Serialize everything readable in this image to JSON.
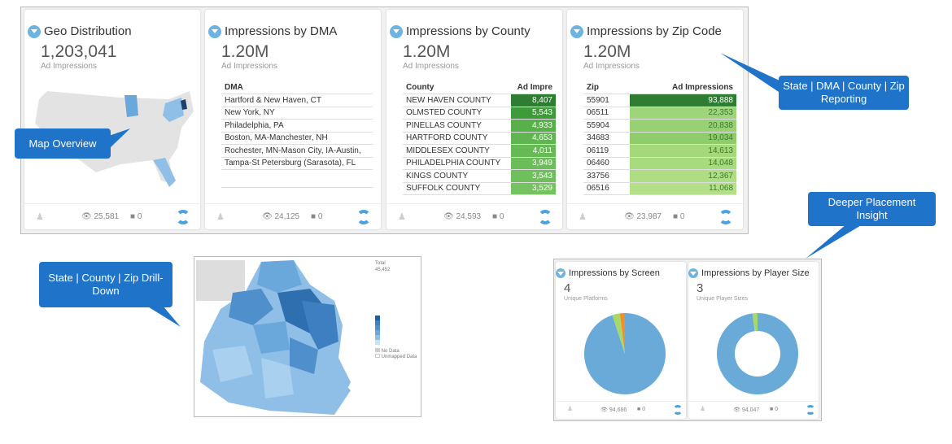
{
  "cards": [
    {
      "title": "Geo Distribution",
      "value": "1,203,041",
      "label": "Ad Impressions",
      "views": "25,581",
      "comments": "0"
    },
    {
      "title": "Impressions by DMA",
      "value": "1.20M",
      "label": "Ad Impressions",
      "views": "24,125",
      "comments": "0",
      "table": {
        "headers": [
          "DMA"
        ],
        "rows": [
          "Hartford & New Haven, CT",
          "New York, NY",
          "Philadelphia, PA",
          "Boston, MA-Manchester, NH",
          "Rochester, MN-Mason City, IA-Austin,",
          "Tampa-St Petersburg (Sarasota), FL"
        ]
      }
    },
    {
      "title": "Impressions by County",
      "value": "1.20M",
      "label": "Ad Impressions",
      "views": "24,593",
      "comments": "0",
      "table": {
        "headers": [
          "County",
          "Ad Impre"
        ],
        "rows": [
          [
            "NEW HAVEN COUNTY",
            "8,407"
          ],
          [
            "OLMSTED COUNTY",
            "5,543"
          ],
          [
            "PINELLAS COUNTY",
            "4,933"
          ],
          [
            "HARTFORD COUNTY",
            "4,653"
          ],
          [
            "MIDDLESEX COUNTY",
            "4,011"
          ],
          [
            "PHILADELPHIA COUNTY",
            "3,949"
          ],
          [
            "KINGS COUNTY",
            "3,543"
          ],
          [
            "SUFFOLK COUNTY",
            "3,529"
          ]
        ]
      }
    },
    {
      "title": "Impressions by Zip Code",
      "value": "1.20M",
      "label": "Ad Impressions",
      "views": "23,987",
      "comments": "0",
      "table": {
        "headers": [
          "Zip",
          "Ad Impressions"
        ],
        "rows": [
          [
            "55901",
            "93,888"
          ],
          [
            "06511",
            "22,353"
          ],
          [
            "55904",
            "20,838"
          ],
          [
            "34683",
            "19,034"
          ],
          [
            "06119",
            "14,613"
          ],
          [
            "06460",
            "14,048"
          ],
          [
            "33756",
            "12,367"
          ],
          [
            "06516",
            "11,068"
          ]
        ]
      }
    }
  ],
  "small_cards": [
    {
      "title": "Impressions by Screen",
      "value": "4",
      "label": "Unique Platforms",
      "views": "94,686",
      "comments": "0",
      "slices": [
        {
          "value": 95,
          "color": "#6aaad8"
        },
        {
          "value": 3,
          "color": "#a6d96a"
        },
        {
          "value": 2,
          "color": "#f28e2b"
        }
      ]
    },
    {
      "title": "Impressions by Player Size",
      "value": "3",
      "label": "Unique Player Sizes",
      "views": "94,047",
      "comments": "0",
      "slices": [
        {
          "value": 98,
          "color": "#6aaad8"
        },
        {
          "value": 2,
          "color": "#a6d96a"
        }
      ]
    }
  ],
  "drilldown": {
    "total_label": "Total",
    "total_value": "45,452",
    "legend_extra": [
      "No Data",
      "Unmapped Data"
    ]
  },
  "callouts": {
    "map": "Map Overview",
    "reporting": "State | DMA | County | Zip Reporting",
    "placement": "Deeper Placement Insight",
    "drill": "State | County | Zip Drill-Down"
  },
  "colors": {
    "callout": "#1f73c9",
    "green_dark": "#2e7d32",
    "green_light": "#a5d87a",
    "map_blue": "#5b9bd5"
  }
}
